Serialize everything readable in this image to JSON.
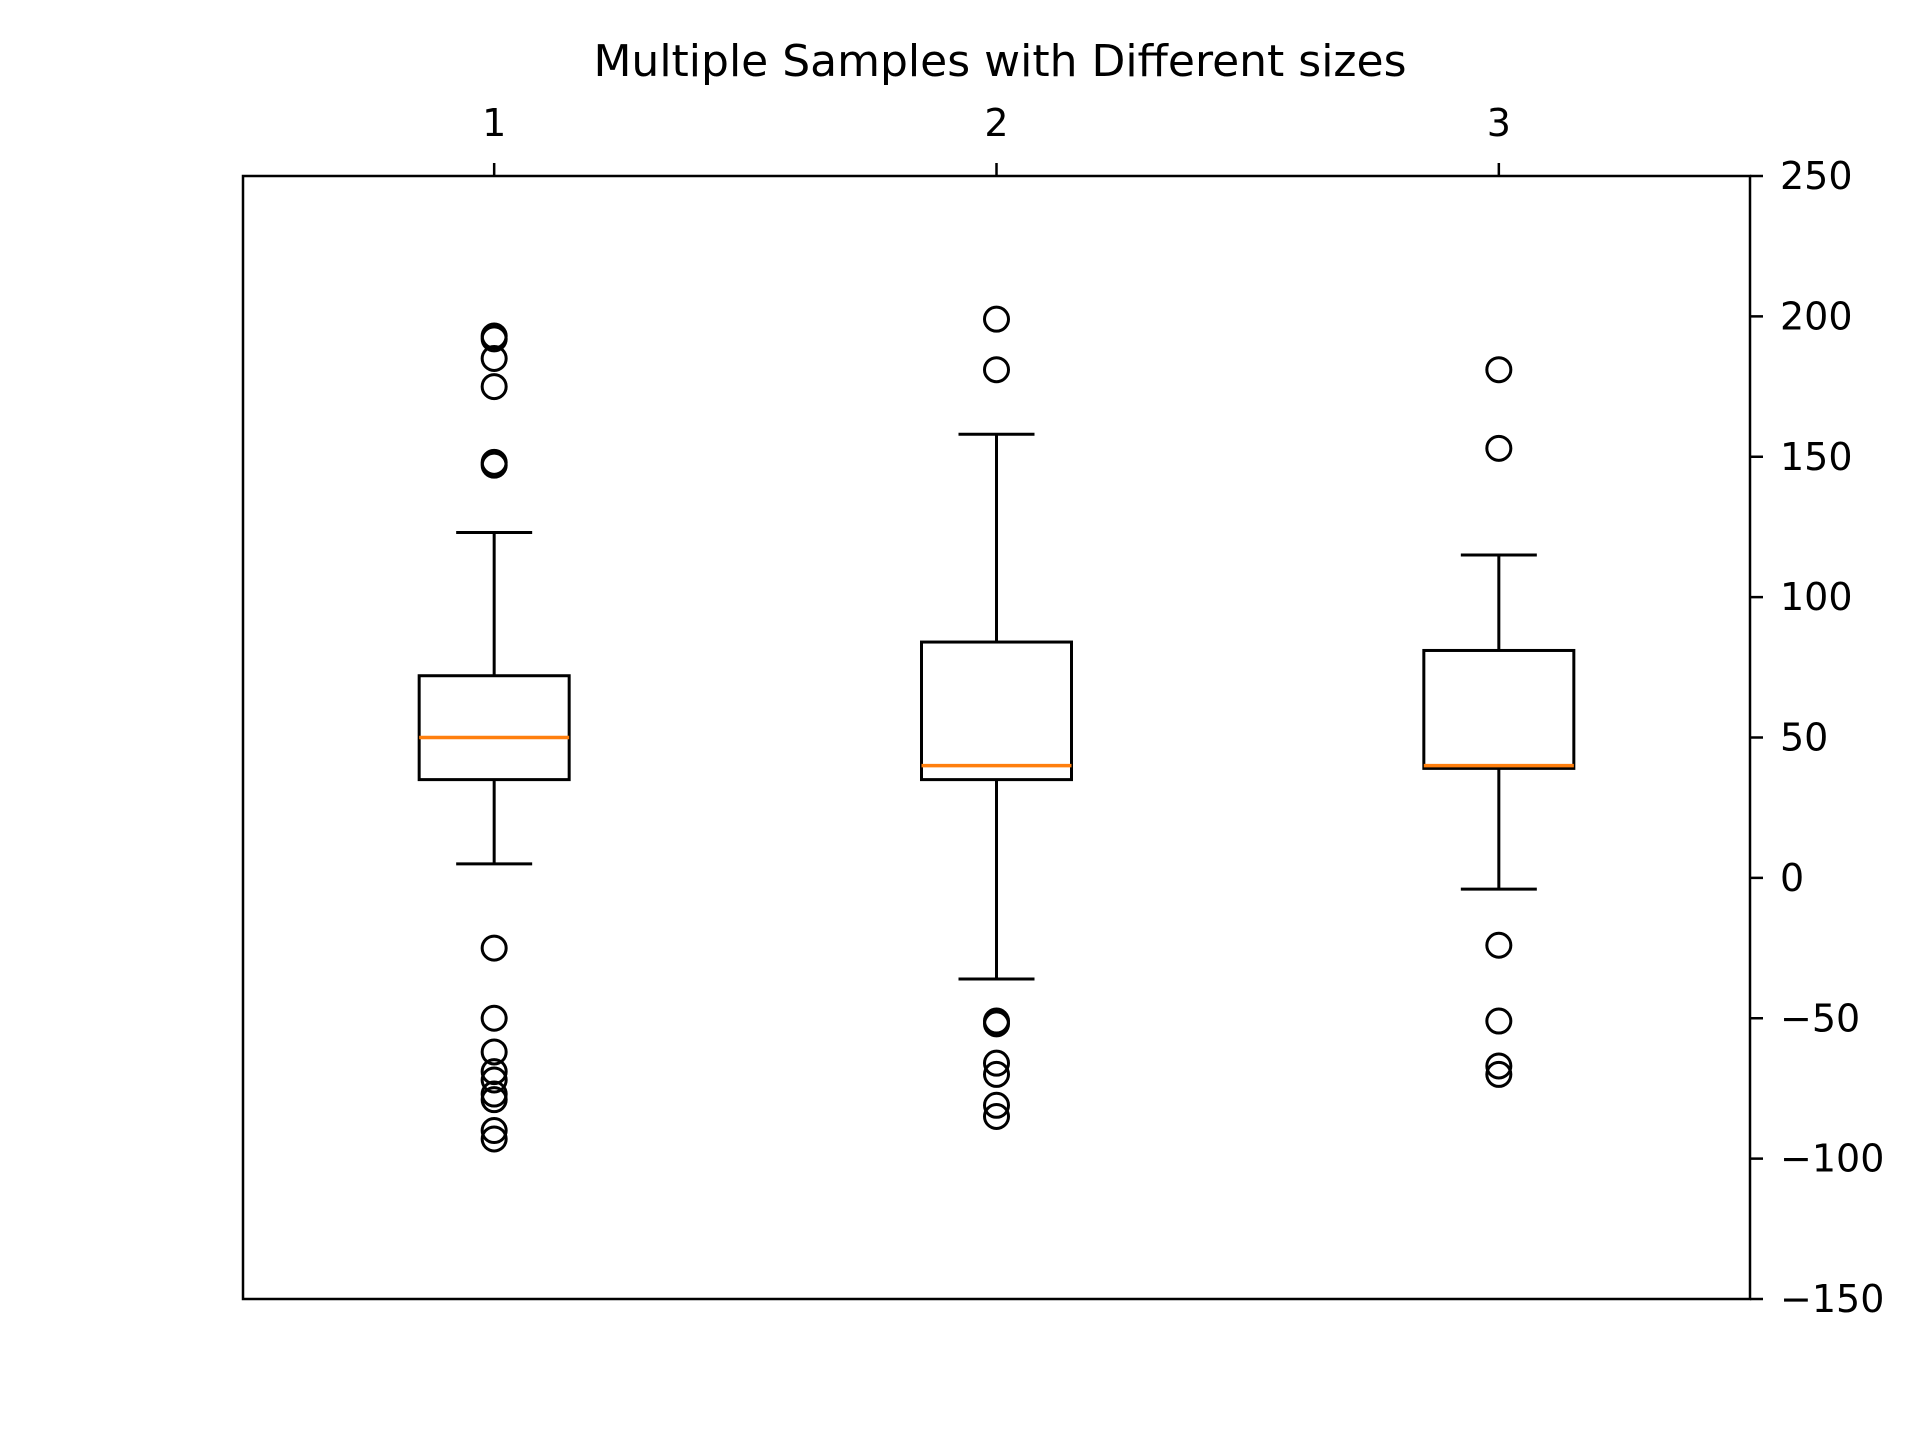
{
  "chart_data": {
    "type": "box",
    "title": "Multiple Samples with Different sizes",
    "xlabel": "",
    "ylabel": "",
    "x_axis_position": "top",
    "y_axis_position": "right",
    "ylim": [
      -150,
      250
    ],
    "yticks": [
      250,
      200,
      150,
      100,
      50,
      0,
      -50,
      -100,
      -150
    ],
    "ytick_labels": [
      "250",
      "200",
      "150",
      "100",
      "50",
      "0",
      "−50",
      "−100",
      "−150"
    ],
    "categories": [
      "1",
      "2",
      "3"
    ],
    "grid": false,
    "colors": {
      "box": "#000000",
      "median": "#ff7f0e",
      "flier": "#000000"
    },
    "boxes": [
      {
        "label": "1",
        "whisker_low": 5,
        "q1": 35,
        "median": 50,
        "q3": 72,
        "whisker_high": 123,
        "fliers": [
          193,
          192,
          185,
          175,
          148,
          147,
          -25,
          -50,
          -62,
          -69,
          -72,
          -77,
          -79,
          -90,
          -93
        ]
      },
      {
        "label": "2",
        "whisker_low": -36,
        "q1": 35,
        "median": 40,
        "q3": 84,
        "whisker_high": 158,
        "fliers": [
          199,
          181,
          -51,
          -52,
          -66,
          -70,
          -81,
          -85
        ]
      },
      {
        "label": "3",
        "whisker_low": -4,
        "q1": 39,
        "median": 40,
        "q3": 81,
        "whisker_high": 115,
        "fliers": [
          181,
          153,
          -24,
          -51,
          -67,
          -70
        ]
      }
    ]
  }
}
